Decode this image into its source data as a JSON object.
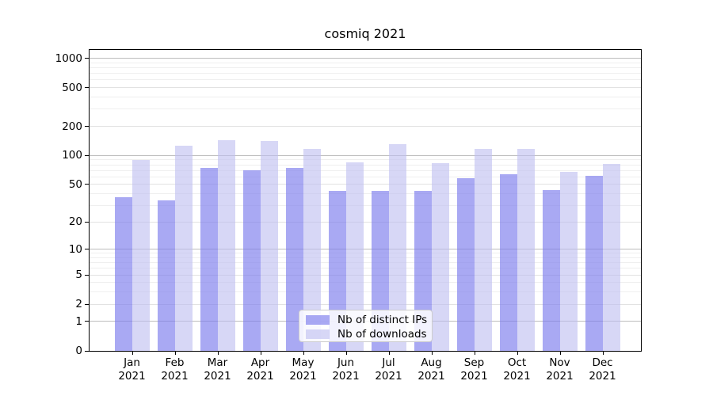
{
  "chart_data": {
    "type": "bar",
    "title": "cosmiq 2021",
    "categories": [
      "Jan 2021",
      "Feb 2021",
      "Mar 2021",
      "Apr 2021",
      "May 2021",
      "Jun 2021",
      "Jul 2021",
      "Aug 2021",
      "Sep 2021",
      "Oct 2021",
      "Nov 2021",
      "Dec 2021"
    ],
    "series": [
      {
        "name": "Nb of distinct IPs",
        "display_color": "#a5a5f3",
        "fill": "rgba(123,123,237,0.65)",
        "values": [
          37,
          34,
          74,
          70,
          75,
          43,
          43,
          43,
          58,
          64,
          44,
          61
        ]
      },
      {
        "name": "Nb of downloads",
        "display_color": "#d8d8f8",
        "fill": "rgba(189,189,240,0.60)",
        "values": [
          90,
          127,
          143,
          140,
          118,
          85,
          132,
          83,
          118,
          117,
          67,
          81
        ]
      }
    ],
    "xlabel": "",
    "ylabel": "",
    "yscale": "symlog-log1p",
    "ylim": [
      0,
      1270
    ],
    "yticks": [
      0,
      1,
      2,
      5,
      10,
      20,
      50,
      100,
      200,
      500,
      1000
    ],
    "grid": true,
    "grid_major_at": [
      1,
      10,
      100,
      1000
    ],
    "grid_labeled_minor_at": [
      2,
      5,
      20,
      50,
      200,
      500
    ],
    "grid_minor_at": [
      3,
      4,
      6,
      7,
      8,
      9,
      30,
      40,
      60,
      70,
      80,
      90,
      300,
      400,
      600,
      700,
      800,
      900
    ],
    "legend_position": "lower center",
    "bar_orientation": "vertical"
  },
  "colors": {
    "background": "#ffffff",
    "axis": "#000000",
    "text": "#000000",
    "grid_major": "#bdbdbd",
    "grid_labeled_minor": "#e2e2e2",
    "grid_minor": "#efefef",
    "legend_border": "#cccccc",
    "legend_background": "rgba(255,255,255,0.85)"
  }
}
